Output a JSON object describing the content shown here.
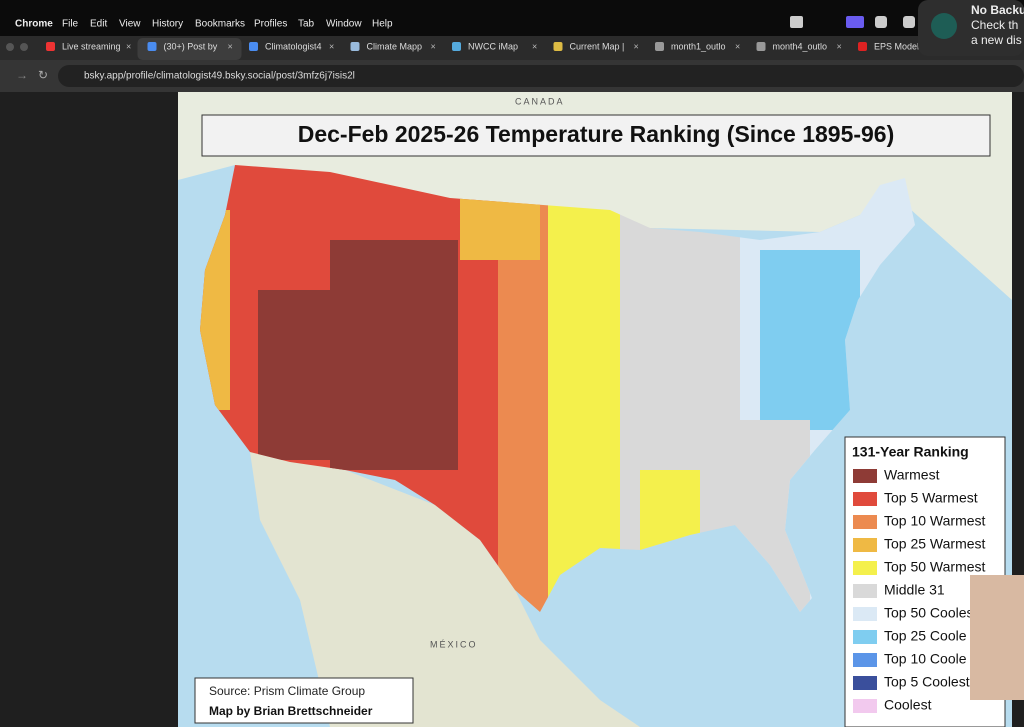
{
  "menubar": {
    "items": [
      "Chrome",
      "File",
      "Edit",
      "View",
      "History",
      "Bookmarks",
      "Profiles",
      "Tab",
      "Window",
      "Help"
    ]
  },
  "tabs": [
    "Live streaming",
    "(30+) Post by",
    "Climatologist4",
    "Climate Mapp",
    "NWCC iMap",
    "Current Map |",
    "month1_outlo",
    "month4_outlo",
    "EPS Model"
  ],
  "address": {
    "url": "bsky.app/profile/climatologist49.bsky.social/post/3mfz6j7isis2l"
  },
  "notification": {
    "lines": [
      "No Backu",
      "Check th",
      "a new dis"
    ]
  },
  "map": {
    "title": "Dec-Feb 2025-26 Temperature Ranking (Since 1895-96)",
    "places": [
      "CANADA",
      "MÉXICO"
    ],
    "legend": {
      "title": "131-Year Ranking",
      "items": [
        {
          "label": "Warmest",
          "color": "#8e3b36"
        },
        {
          "label": "Top 5 Warmest",
          "color": "#e04a3c"
        },
        {
          "label": "Top 10 Warmest",
          "color": "#ec8a50"
        },
        {
          "label": "Top 25 Warmest",
          "color": "#efb944"
        },
        {
          "label": "Top 50 Warmest",
          "color": "#f4f04c"
        },
        {
          "label": "Middle 31",
          "color": "#d9d9d9"
        },
        {
          "label": "Top 50 Cooles",
          "color": "#dbe9f5"
        },
        {
          "label": "Top 25 Coole",
          "color": "#7fcdf0"
        },
        {
          "label": "Top 10 Coole",
          "color": "#5b95e8"
        },
        {
          "label": "Top 5 Coolest",
          "color": "#3a4f9c"
        },
        {
          "label": "Coolest",
          "color": "#f2c9ee"
        }
      ]
    },
    "source": [
      "Source: Prism Climate Group",
      "Map by Brian Brettschneider"
    ]
  }
}
